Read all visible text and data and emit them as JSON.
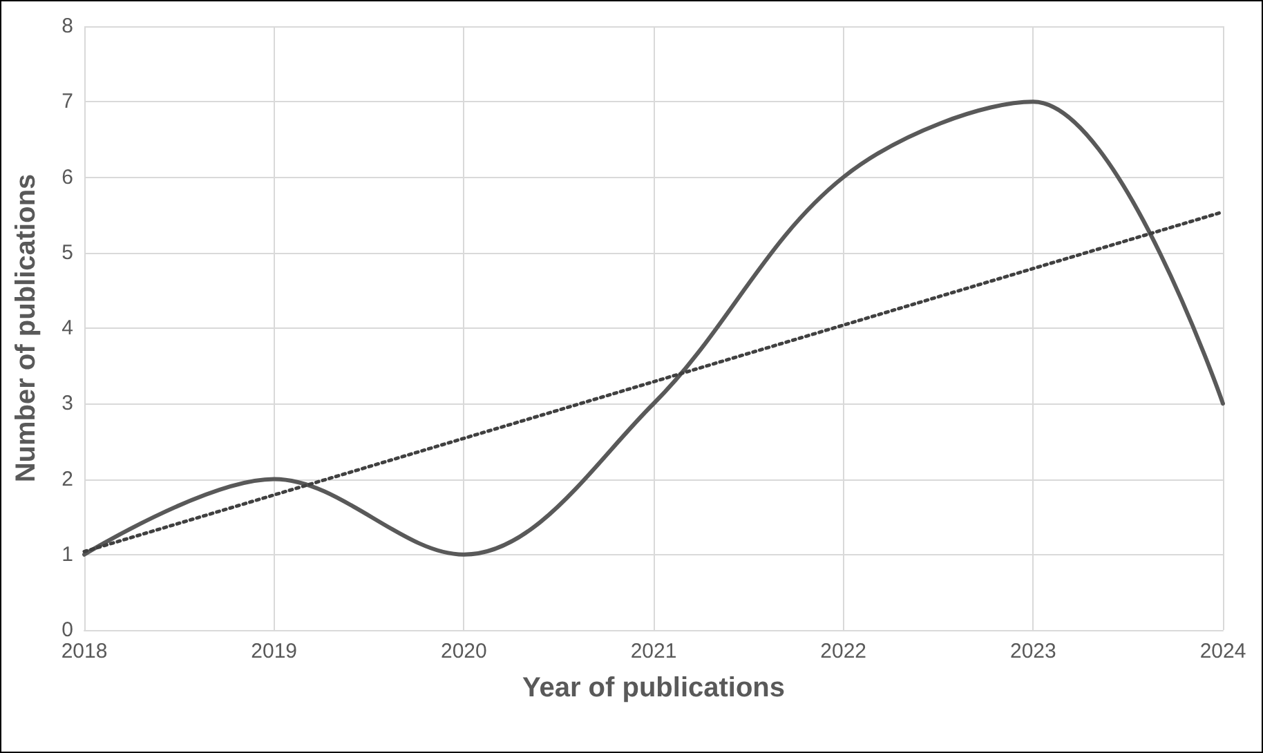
{
  "chart_data": {
    "type": "line",
    "xlabel": "Year of publications",
    "ylabel": "Number of publications",
    "x": [
      2018,
      2019,
      2020,
      2021,
      2022,
      2023,
      2024
    ],
    "series": [
      {
        "color": "#595959",
        "values": [
          1,
          2,
          1,
          3,
          6,
          7,
          3
        ],
        "line_style": "solid"
      },
      {
        "color": "#404040",
        "x": [
          2018,
          2024
        ],
        "values": [
          1.04,
          5.54
        ],
        "line_style": "dotted"
      }
    ],
    "xlim": [
      2018,
      2024
    ],
    "xticks": [
      2018,
      2019,
      2020,
      2021,
      2022,
      2023,
      2024
    ],
    "ylim": [
      0,
      8
    ],
    "yticks": [
      0,
      1,
      2,
      3,
      4,
      5,
      6,
      7,
      8
    ],
    "grid": true,
    "marker": "none"
  }
}
